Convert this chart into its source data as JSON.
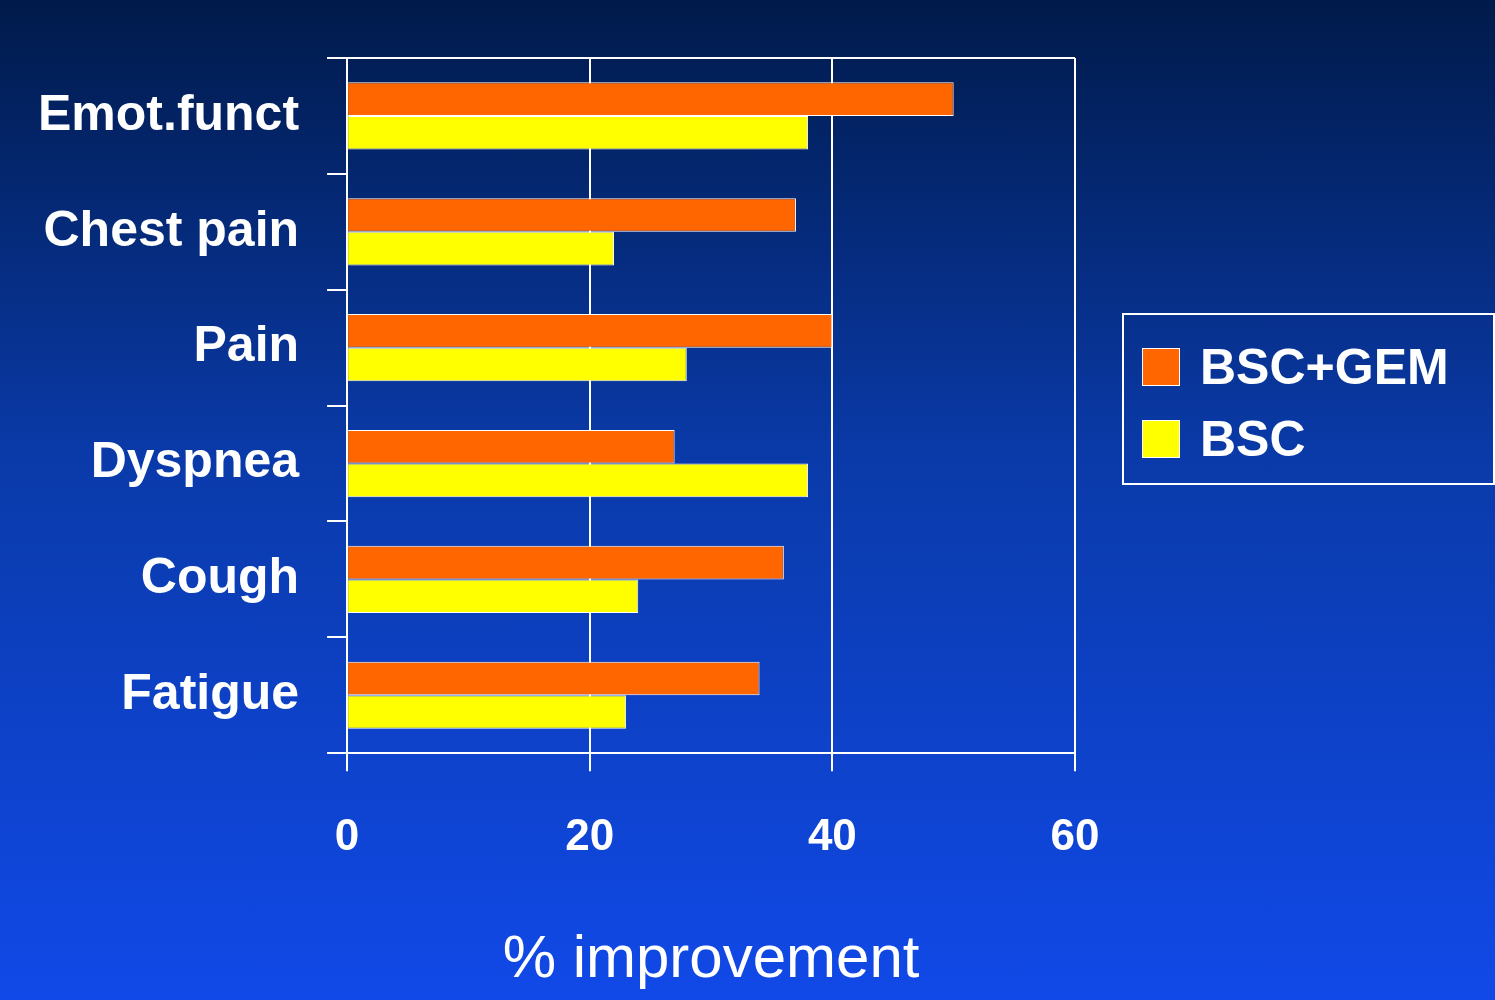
{
  "chart_data": {
    "type": "bar",
    "orientation": "horizontal",
    "xlabel": "% improvement",
    "categories": [
      "Emot.funct",
      "Chest pain",
      "Pain",
      "Dyspnea",
      "Cough",
      "Fatigue"
    ],
    "series": [
      {
        "name": "BSC+GEM",
        "color": "#ff6600",
        "values": [
          50,
          37,
          40,
          27,
          36,
          34
        ]
      },
      {
        "name": "BSC",
        "color": "#ffff00",
        "values": [
          38,
          22,
          28,
          38,
          24,
          23
        ]
      }
    ],
    "xlim": [
      0,
      60
    ],
    "xticks": [
      0,
      20,
      40,
      60
    ],
    "grid": "x",
    "legend": "right"
  }
}
